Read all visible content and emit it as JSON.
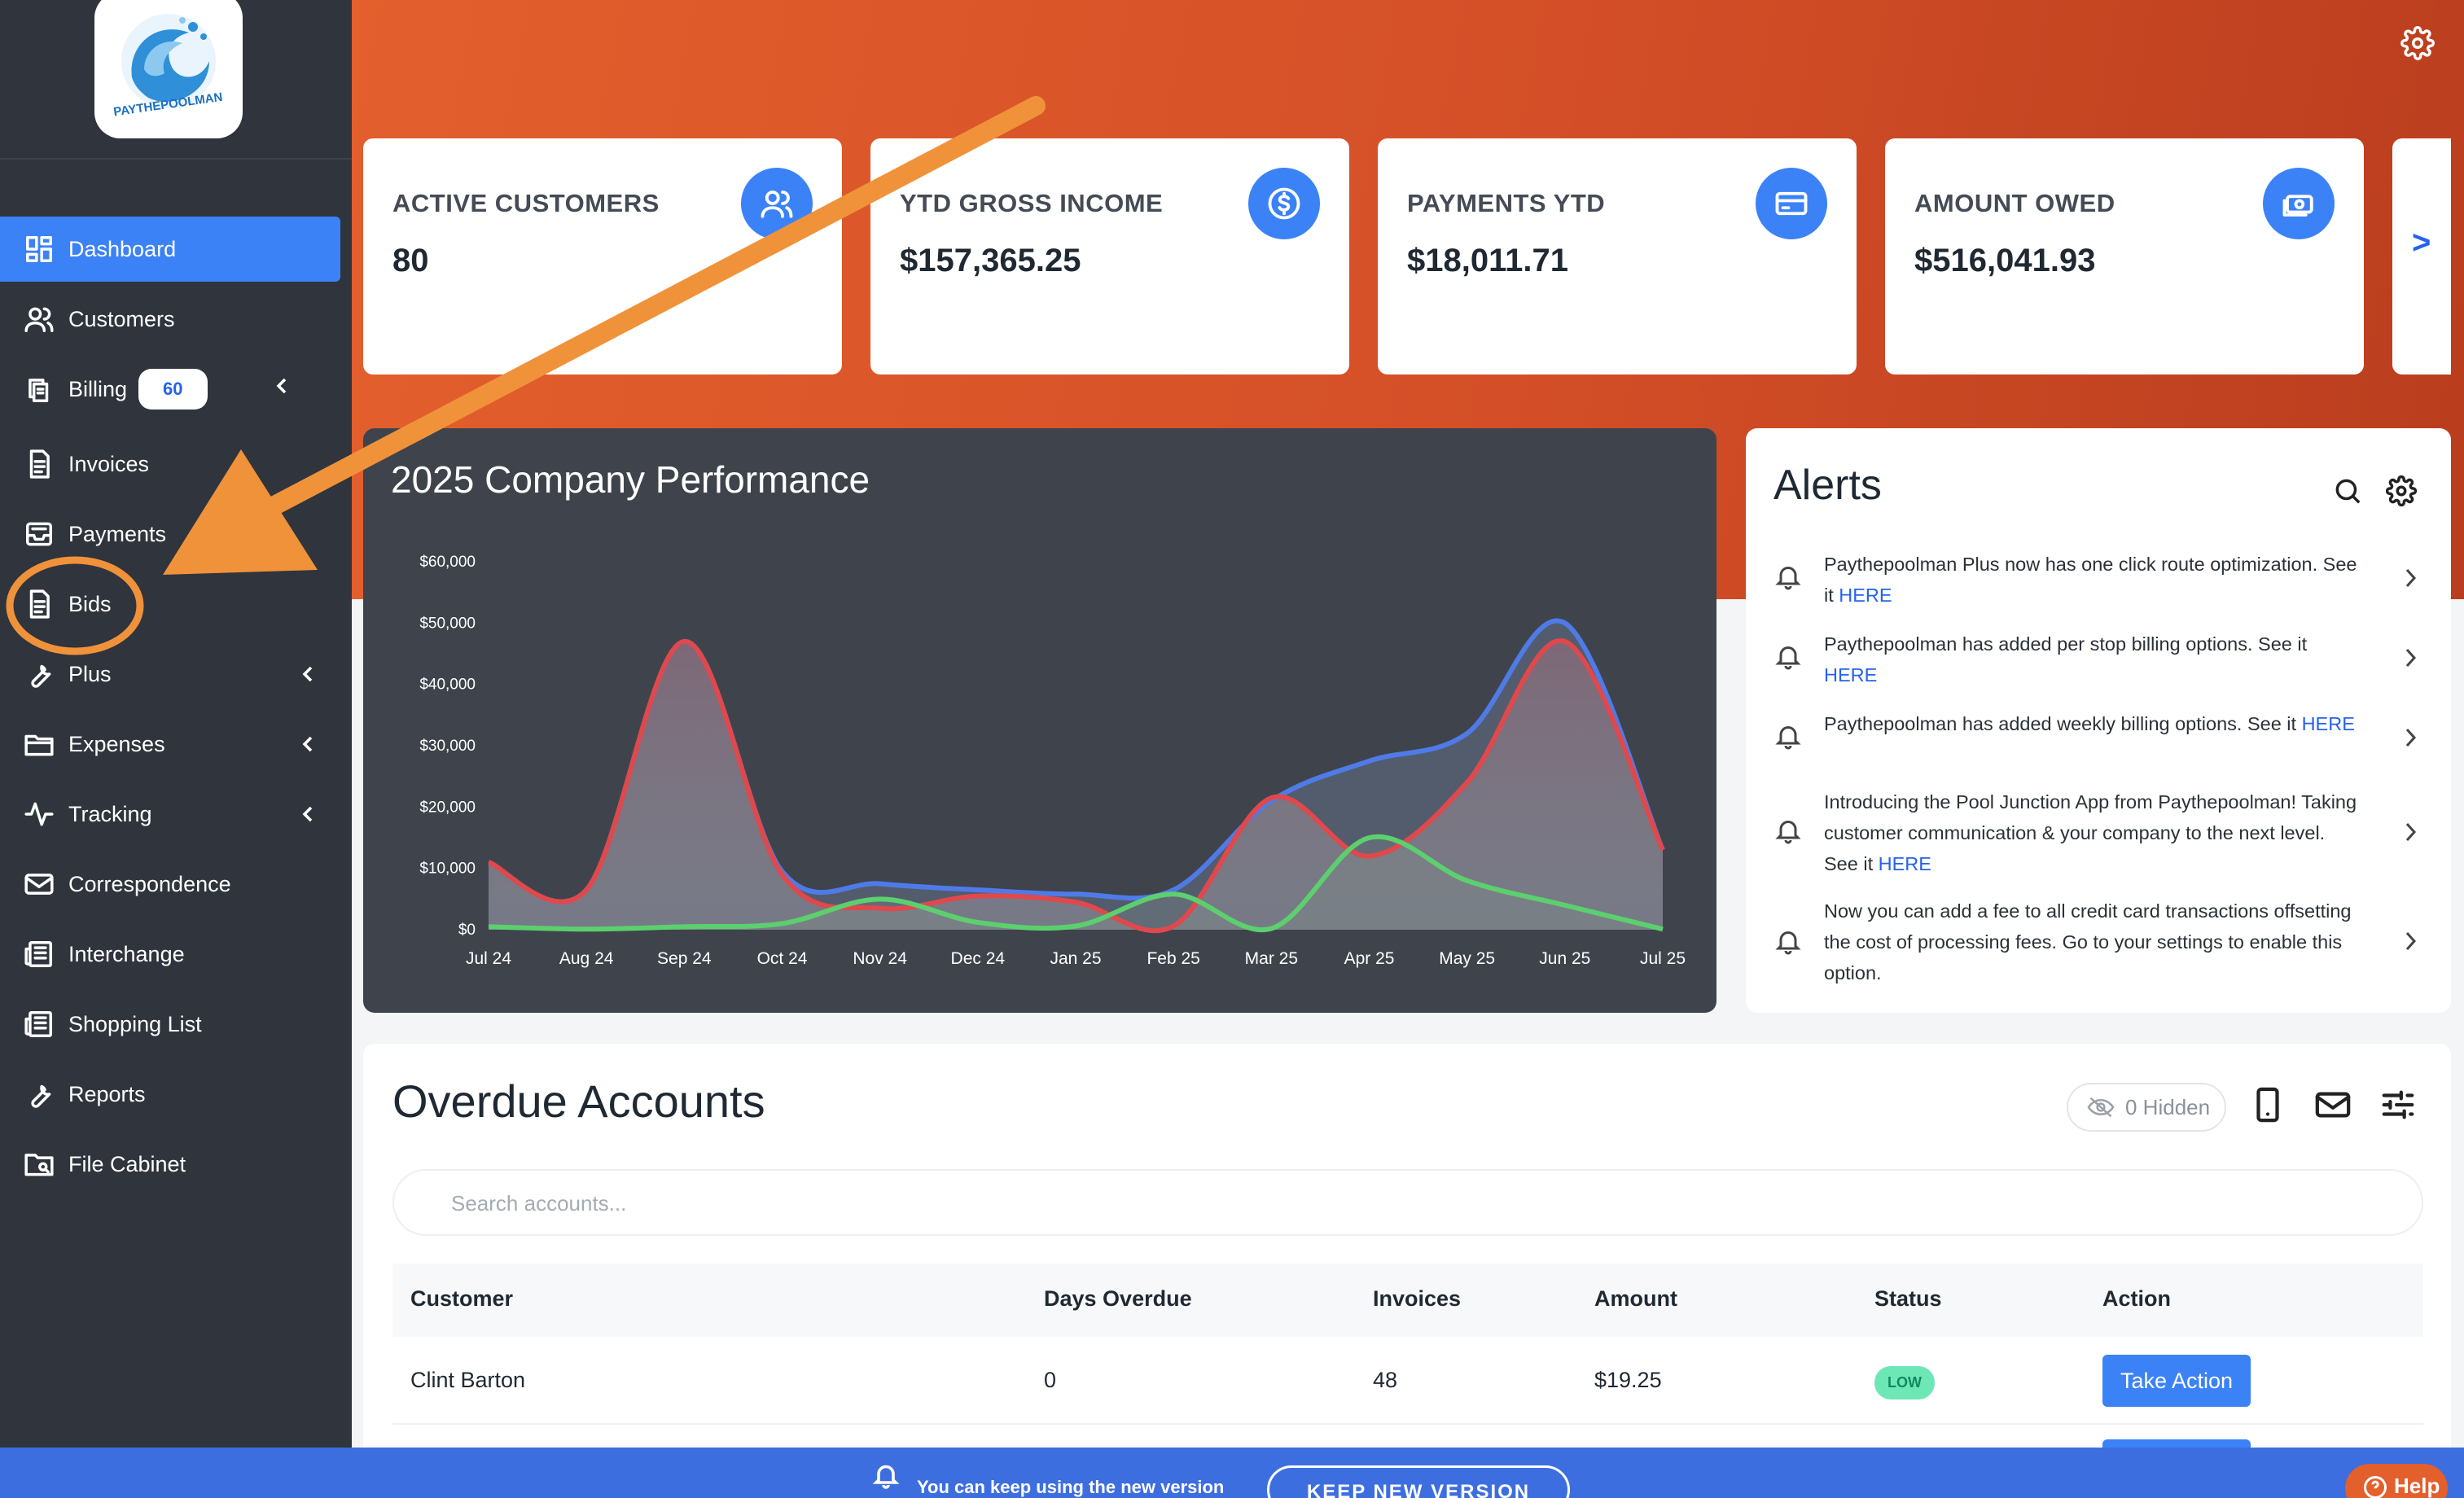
{
  "sidebar": {
    "logo_text": "PAYTHEPOOLMAN",
    "items": [
      {
        "label": "Dashboard",
        "icon": "dashboard-icon",
        "active": true
      },
      {
        "label": "Customers",
        "icon": "users-icon"
      },
      {
        "label": "Billing",
        "icon": "copy-icon",
        "badge": "60",
        "expandable": true
      },
      {
        "label": "Invoices",
        "icon": "document-icon"
      },
      {
        "label": "Payments",
        "icon": "inbox-icon"
      },
      {
        "label": "Bids",
        "icon": "document-icon"
      },
      {
        "label": "Plus",
        "icon": "wrench-icon",
        "expandable": true
      },
      {
        "label": "Expenses",
        "icon": "folder-icon",
        "expandable": true
      },
      {
        "label": "Tracking",
        "icon": "activity-icon",
        "expandable": true
      },
      {
        "label": "Correspondence",
        "icon": "mail-icon"
      },
      {
        "label": "Interchange",
        "icon": "newspaper-icon"
      },
      {
        "label": "Shopping List",
        "icon": "list-icon"
      },
      {
        "label": "Reports",
        "icon": "wrench-icon"
      },
      {
        "label": "File Cabinet",
        "icon": "folder-search-icon"
      }
    ]
  },
  "stats": [
    {
      "label": "ACTIVE CUSTOMERS",
      "value": "80",
      "icon": "users-icon"
    },
    {
      "label": "YTD GROSS INCOME",
      "value": "$157,365.25",
      "icon": "dollar-icon"
    },
    {
      "label": "PAYMENTS YTD",
      "value": "$18,011.71",
      "icon": "credit-card-icon"
    },
    {
      "label": "AMOUNT OWED",
      "value": "$516,041.93",
      "icon": "cash-icon"
    }
  ],
  "stats_next_label": ">",
  "chart": {
    "title": "2025 Company Performance"
  },
  "chart_data": {
    "type": "area",
    "title": "2025 Company Performance",
    "x": [
      "Jul 24",
      "Aug 24",
      "Sep 24",
      "Oct 24",
      "Nov 24",
      "Dec 24",
      "Jan 25",
      "Feb 25",
      "Mar 25",
      "Apr 25",
      "May 25",
      "Jun 25",
      "Jul 25"
    ],
    "y_ticks": [
      "$0",
      "$10,000",
      "$20,000",
      "$30,000",
      "$40,000",
      "$50,000",
      "$60,000"
    ],
    "ylim": [
      0,
      60000
    ],
    "series": [
      {
        "color": "#4f7be8",
        "values": [
          11000,
          6500,
          47000,
          9500,
          7500,
          6500,
          5800,
          6500,
          21000,
          27500,
          32000,
          50000,
          13000
        ]
      },
      {
        "color": "#e0484c",
        "values": [
          11000,
          6500,
          47000,
          9000,
          3500,
          5500,
          4500,
          600,
          21500,
          12000,
          24000,
          47000,
          13000
        ]
      },
      {
        "color": "#5ccf6e",
        "values": [
          500,
          100,
          500,
          1000,
          5000,
          1200,
          600,
          5800,
          200,
          15000,
          8000,
          4000,
          100
        ]
      }
    ],
    "grid": false,
    "legend": "none"
  },
  "alerts": {
    "title": "Alerts",
    "items": [
      {
        "text": "Paythepoolman Plus now has one click route optimization. See it ",
        "link": "HERE"
      },
      {
        "text": "Paythepoolman has added per stop billing options. See it ",
        "link": "HERE"
      },
      {
        "text": "Paythepoolman has added weekly billing options. See it ",
        "link": "HERE"
      },
      {
        "text": "Introducing the Pool Junction App from Paythepoolman! Taking customer communication & your company to the next level. See it ",
        "link": "HERE"
      },
      {
        "text": "Now you can add a fee to all credit card transactions offsetting the cost of processing fees. Go to your settings to enable this option.",
        "link": ""
      }
    ]
  },
  "overdue": {
    "title": "Overdue Accounts",
    "hidden_label": "0 Hidden",
    "search_placeholder": "Search accounts...",
    "columns": [
      "Customer",
      "Days Overdue",
      "Invoices",
      "Amount",
      "Status",
      "Action"
    ],
    "rows": [
      {
        "customer": "Clint Barton",
        "days": "0",
        "invoices": "48",
        "amount": "$19.25",
        "status": "LOW",
        "action": "Take Action"
      }
    ]
  },
  "banner": {
    "text": "You can keep using the new version",
    "button": "KEEP NEW VERSION"
  },
  "help_label": "Help",
  "colors": {
    "sidebar_bg": "#2f343d",
    "accent": "#3b82f6",
    "header_orange": "#d9552a",
    "annotation_orange": "#f0923a"
  }
}
